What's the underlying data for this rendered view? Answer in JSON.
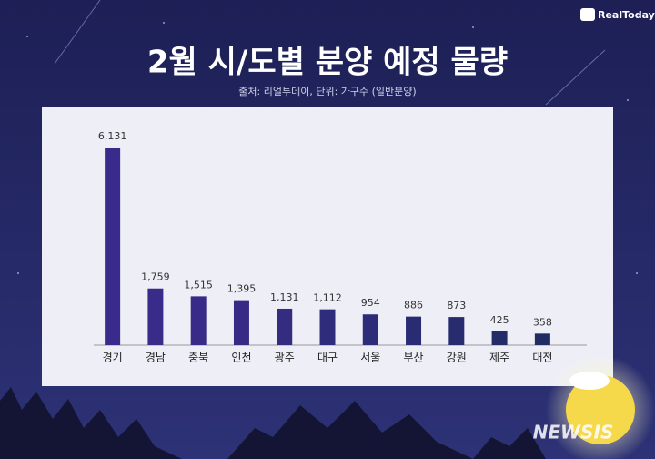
{
  "logo": "RealToday",
  "watermark": "NEWSIS",
  "chart_data": {
    "type": "bar",
    "title": "2월 시/도별 분양 예정 물량",
    "subtitle": "출처: 리얼투데이, 단위: 가구수 (일반분양)",
    "categories": [
      "경기",
      "경남",
      "충북",
      "인천",
      "광주",
      "대구",
      "서울",
      "부산",
      "강원",
      "제주",
      "대전"
    ],
    "values": [
      6131,
      1759,
      1515,
      1395,
      1131,
      1112,
      954,
      886,
      873,
      425,
      358
    ],
    "value_labels": [
      "6,131",
      "1,759",
      "1,515",
      "1,395",
      "1,131",
      "1,112",
      "954",
      "886",
      "873",
      "425",
      "358"
    ],
    "colors": [
      "#3a2a8c",
      "#392b8a",
      "#372b87",
      "#352b84",
      "#332c80",
      "#302c7c",
      "#2d2c78",
      "#2a2c73",
      "#272c6e",
      "#242c68",
      "#222c64"
    ]
  }
}
